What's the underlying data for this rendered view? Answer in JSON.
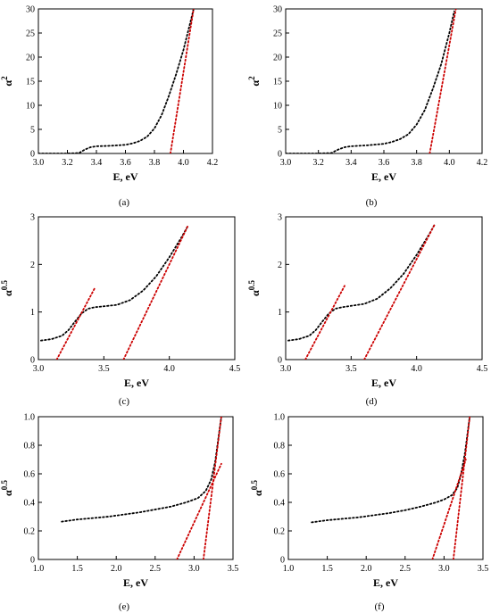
{
  "chart_data": [
    {
      "type": "scatter",
      "panel_label": "(a)",
      "xlabel": "E, eV",
      "ylabel_base": "α",
      "ylabel_sup": "2",
      "xlim": [
        3.0,
        4.2
      ],
      "ylim": [
        0,
        30
      ],
      "xticks": [
        "3.0",
        "3.2",
        "3.4",
        "3.6",
        "3.8",
        "4.0",
        "4.2"
      ],
      "yticks": [
        "0",
        "5",
        "10",
        "15",
        "20",
        "25",
        "30"
      ],
      "series": [
        {
          "color": "#000000",
          "style": "dotted",
          "x": [
            3.0,
            3.1,
            3.2,
            3.28,
            3.32,
            3.36,
            3.4,
            3.5,
            3.6,
            3.65,
            3.7,
            3.75,
            3.8,
            3.85,
            3.9,
            3.95,
            4.0,
            4.05,
            4.07
          ],
          "y": [
            0,
            0,
            0,
            0.1,
            0.8,
            1.3,
            1.5,
            1.6,
            1.8,
            2.1,
            2.6,
            3.5,
            5.2,
            8.0,
            12.0,
            16.5,
            21.5,
            27.5,
            30
          ]
        },
        {
          "color": "#cc0000",
          "style": "dotted",
          "x": [
            3.91,
            4.07
          ],
          "y": [
            0,
            30
          ]
        }
      ]
    },
    {
      "type": "scatter",
      "panel_label": "(b)",
      "xlabel": "E, eV",
      "ylabel_base": "α",
      "ylabel_sup": "2",
      "xlim": [
        3.0,
        4.2
      ],
      "ylim": [
        0,
        30
      ],
      "xticks": [
        "3.0",
        "3.2",
        "3.4",
        "3.6",
        "3.8",
        "4.0",
        "4.2"
      ],
      "yticks": [
        "0",
        "5",
        "10",
        "15",
        "20",
        "25",
        "30"
      ],
      "series": [
        {
          "color": "#000000",
          "style": "dotted",
          "x": [
            3.0,
            3.1,
            3.2,
            3.28,
            3.32,
            3.36,
            3.4,
            3.5,
            3.6,
            3.65,
            3.7,
            3.75,
            3.8,
            3.85,
            3.9,
            3.95,
            4.0,
            4.03
          ],
          "y": [
            0,
            0,
            0,
            0.1,
            0.8,
            1.3,
            1.5,
            1.7,
            2.0,
            2.4,
            3.0,
            4.0,
            6.0,
            9.0,
            13.5,
            18.5,
            25.0,
            29.5
          ]
        },
        {
          "color": "#cc0000",
          "style": "dotted",
          "x": [
            3.88,
            4.04
          ],
          "y": [
            0,
            30
          ]
        }
      ]
    },
    {
      "type": "scatter",
      "panel_label": "(c)",
      "xlabel": "E, eV",
      "ylabel_base": "α",
      "ylabel_sup": "0.5",
      "xlim": [
        3.0,
        4.5
      ],
      "ylim": [
        0,
        3
      ],
      "xticks": [
        "3.0",
        "3.5",
        "4.0",
        "4.5"
      ],
      "yticks": [
        "0",
        "1",
        "2",
        "3"
      ],
      "series": [
        {
          "color": "#000000",
          "style": "dotted",
          "x": [
            3.02,
            3.1,
            3.18,
            3.23,
            3.28,
            3.33,
            3.38,
            3.43,
            3.5,
            3.6,
            3.7,
            3.8,
            3.9,
            4.0,
            4.1,
            4.14
          ],
          "y": [
            0.4,
            0.43,
            0.5,
            0.62,
            0.8,
            0.97,
            1.07,
            1.1,
            1.12,
            1.15,
            1.25,
            1.45,
            1.75,
            2.15,
            2.6,
            2.8
          ]
        },
        {
          "color": "#cc0000",
          "style": "dotted",
          "x": [
            3.14,
            3.43
          ],
          "y": [
            0,
            1.5
          ]
        },
        {
          "color": "#cc0000",
          "style": "dotted",
          "x": [
            3.65,
            4.14
          ],
          "y": [
            0,
            2.8
          ]
        }
      ]
    },
    {
      "type": "scatter",
      "panel_label": "(d)",
      "xlabel": "E, eV",
      "ylabel_base": "α",
      "ylabel_sup": "0.5",
      "xlim": [
        3.0,
        4.5
      ],
      "ylim": [
        0,
        3
      ],
      "xticks": [
        "3.0",
        "3.5",
        "4.0",
        "4.5"
      ],
      "yticks": [
        "0",
        "1",
        "2",
        "3"
      ],
      "series": [
        {
          "color": "#000000",
          "style": "dotted",
          "x": [
            3.02,
            3.1,
            3.18,
            3.23,
            3.28,
            3.33,
            3.38,
            3.43,
            3.5,
            3.6,
            3.7,
            3.8,
            3.9,
            4.0,
            4.1,
            4.14
          ],
          "y": [
            0.4,
            0.43,
            0.5,
            0.62,
            0.8,
            0.97,
            1.07,
            1.1,
            1.13,
            1.17,
            1.28,
            1.5,
            1.8,
            2.2,
            2.65,
            2.85
          ]
        },
        {
          "color": "#cc0000",
          "style": "dotted",
          "x": [
            3.15,
            3.45
          ],
          "y": [
            0,
            1.55
          ]
        },
        {
          "color": "#cc0000",
          "style": "dotted",
          "x": [
            3.6,
            4.14
          ],
          "y": [
            0,
            2.85
          ]
        }
      ]
    },
    {
      "type": "scatter",
      "panel_label": "(e)",
      "xlabel": "E, eV",
      "ylabel_base": "α",
      "ylabel_sup": "0.5",
      "xlim": [
        1.0,
        3.5
      ],
      "ylim": [
        0,
        1.0
      ],
      "xticks": [
        "1.0",
        "1.5",
        "2.0",
        "2.5",
        "3.0",
        "3.5"
      ],
      "yticks": [
        "0",
        "0.2",
        "0.4",
        "0.6",
        "0.8",
        "1.0"
      ],
      "series": [
        {
          "color": "#000000",
          "style": "dotted",
          "x": [
            1.3,
            1.5,
            1.7,
            1.9,
            2.1,
            2.3,
            2.5,
            2.7,
            2.9,
            3.05,
            3.15,
            3.22,
            3.27,
            3.31,
            3.35
          ],
          "y": [
            0.265,
            0.28,
            0.29,
            0.3,
            0.315,
            0.33,
            0.35,
            0.37,
            0.4,
            0.43,
            0.48,
            0.56,
            0.68,
            0.84,
            1.0
          ]
        },
        {
          "color": "#cc0000",
          "style": "dotted",
          "x": [
            2.78,
            3.35
          ],
          "y": [
            0,
            0.67
          ]
        },
        {
          "color": "#cc0000",
          "style": "dotted",
          "x": [
            3.12,
            3.35
          ],
          "y": [
            0,
            1.0
          ]
        }
      ]
    },
    {
      "type": "scatter",
      "panel_label": "(f)",
      "xlabel": "E, eV",
      "ylabel_base": "α",
      "ylabel_sup": "0.5",
      "xlim": [
        1.0,
        3.5
      ],
      "ylim": [
        0,
        1.0
      ],
      "xticks": [
        "1.0",
        "1.5",
        "2.0",
        "2.5",
        "3.0",
        "3.5"
      ],
      "yticks": [
        "0",
        "0.2",
        "0.4",
        "0.6",
        "0.8",
        "1.0"
      ],
      "series": [
        {
          "color": "#000000",
          "style": "dotted",
          "x": [
            1.3,
            1.5,
            1.7,
            1.9,
            2.1,
            2.3,
            2.5,
            2.7,
            2.9,
            3.0,
            3.1,
            3.17,
            3.22,
            3.27,
            3.33
          ],
          "y": [
            0.26,
            0.275,
            0.285,
            0.295,
            0.31,
            0.325,
            0.345,
            0.37,
            0.4,
            0.42,
            0.45,
            0.5,
            0.6,
            0.75,
            1.0
          ]
        },
        {
          "color": "#cc0000",
          "style": "dotted",
          "x": [
            2.85,
            3.28
          ],
          "y": [
            0,
            0.7
          ]
        },
        {
          "color": "#cc0000",
          "style": "dotted",
          "x": [
            3.12,
            3.33
          ],
          "y": [
            0,
            1.0
          ]
        }
      ]
    }
  ]
}
